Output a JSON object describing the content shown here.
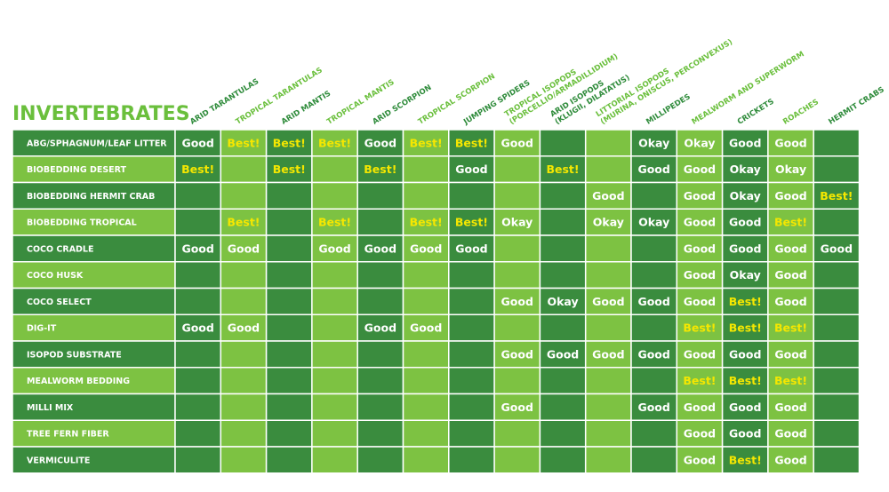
{
  "title": "INVERTEBRATES",
  "columns": [
    [
      "ARID TARANTULAS"
    ],
    [
      "TROPICAL TARANTULAS"
    ],
    [
      "ARID MANTIS"
    ],
    [
      "TROPICAL MANTIS"
    ],
    [
      "ARID SCORPION"
    ],
    [
      "TROPICAL SCORPION"
    ],
    [
      "JUMPING SPIDERS"
    ],
    [
      "TROPICAL ISOPODS",
      "(PORCELLIO/ARMADILLIDIUM)"
    ],
    [
      "ARID ISOPODS",
      "(KLUGII, DILATATUS)"
    ],
    [
      "LITTORIAL ISOPODS",
      "(MURINA, ONISCUS, PERCONVEXUS)"
    ],
    [
      "MILLIPEDES"
    ],
    [
      "MEALWORM AND SUPERWORM"
    ],
    [
      "CRICKETS"
    ],
    [
      "ROACHES"
    ],
    [
      "HERMIT CRABS"
    ]
  ],
  "rows": [
    {
      "label": "ABG/SPHAGNUM/LEAF LITTER",
      "cells": [
        "Good",
        "Best!",
        "Best!",
        "Best!",
        "Good",
        "Best!",
        "Best!",
        "Good",
        null,
        null,
        "Okay",
        "Okay",
        "Good",
        "Good",
        null
      ]
    },
    {
      "label": "BIOBEDDING DESERT",
      "cells": [
        "Best!",
        null,
        "Best!",
        null,
        "Best!",
        null,
        "Good",
        null,
        "Best!",
        null,
        "Good",
        "Good",
        "Okay",
        "Okay",
        null
      ]
    },
    {
      "label": "BIOBEDDING HERMIT CRAB",
      "cells": [
        null,
        null,
        null,
        null,
        null,
        null,
        null,
        null,
        null,
        "Good",
        null,
        "Good",
        "Okay",
        "Good",
        "Best!"
      ]
    },
    {
      "label": "BIOBEDDING TROPICAL",
      "cells": [
        null,
        "Best!",
        null,
        "Best!",
        null,
        "Best!",
        "Best!",
        "Okay",
        null,
        "Okay",
        "Okay",
        "Good",
        "Good",
        "Best!",
        null
      ]
    },
    {
      "label": "COCO CRADLE",
      "cells": [
        "Good",
        "Good",
        null,
        "Good",
        "Good",
        "Good",
        "Good",
        null,
        null,
        null,
        null,
        "Good",
        "Good",
        "Good",
        "Good"
      ]
    },
    {
      "label": "COCO HUSK",
      "cells": [
        null,
        null,
        null,
        null,
        null,
        null,
        null,
        null,
        null,
        null,
        null,
        "Good",
        "Okay",
        "Good",
        null
      ]
    },
    {
      "label": "COCO SELECT",
      "cells": [
        null,
        null,
        null,
        null,
        null,
        null,
        null,
        "Good",
        "Okay",
        "Good",
        "Good",
        "Good",
        "Best!",
        "Good",
        null
      ]
    },
    {
      "label": "DIG-IT",
      "cells": [
        "Good",
        "Good",
        null,
        null,
        "Good",
        "Good",
        null,
        null,
        null,
        null,
        null,
        "Best!",
        "Best!",
        "Best!",
        null
      ]
    },
    {
      "label": "ISOPOD SUBSTRATE",
      "cells": [
        null,
        null,
        null,
        null,
        null,
        null,
        null,
        "Good",
        "Good",
        "Good",
        "Good",
        "Good",
        "Good",
        "Good",
        null
      ]
    },
    {
      "label": "MEALWORM BEDDING",
      "cells": [
        null,
        null,
        null,
        null,
        null,
        null,
        null,
        null,
        null,
        null,
        null,
        "Best!",
        "Best!",
        "Best!",
        null
      ]
    },
    {
      "label": "MILLI MIX",
      "cells": [
        null,
        null,
        null,
        null,
        null,
        null,
        null,
        "Good",
        null,
        null,
        "Good",
        "Good",
        "Good",
        "Good",
        null
      ]
    },
    {
      "label": "TREE FERN FIBER",
      "cells": [
        null,
        null,
        null,
        null,
        null,
        null,
        null,
        null,
        null,
        null,
        null,
        "Good",
        "Good",
        "Good",
        null
      ]
    },
    {
      "label": "VERMICULITE",
      "cells": [
        null,
        null,
        null,
        null,
        null,
        null,
        null,
        null,
        null,
        null,
        null,
        "Good",
        "Best!",
        "Good",
        null
      ]
    }
  ]
}
